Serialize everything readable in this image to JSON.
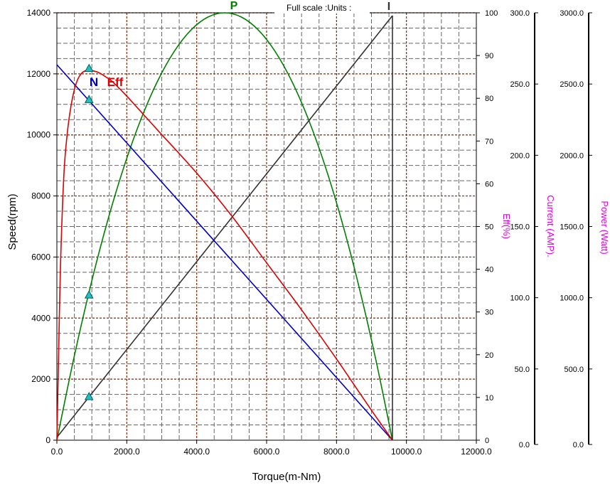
{
  "chart_data": {
    "type": "line",
    "subtitle": "Full scale :Units :",
    "xlabel": "Torque(m-Nm)",
    "ylabel": "Speed(rpm)",
    "xlim": [
      0,
      12000
    ],
    "ylim": [
      0,
      14000
    ],
    "grid": true,
    "x_ticks": [
      "0.0",
      "2000.0",
      "4000.0",
      "6000.0",
      "8000.0",
      "10000.0",
      "12000.0"
    ],
    "y_ticks": [
      "0",
      "2000",
      "4000",
      "6000",
      "8000",
      "10000",
      "12000",
      "14000"
    ],
    "right_axes": [
      {
        "label": "Eff(%)",
        "range": [
          0,
          100
        ],
        "ticks": [
          "0",
          "10",
          "20",
          "30",
          "40",
          "50",
          "60",
          "70",
          "80",
          "90",
          "100"
        ]
      },
      {
        "label": "Current (AMP).",
        "range": [
          0,
          300
        ],
        "ticks": [
          "0.0",
          "50.0",
          "100.0",
          "150.0",
          "200.0",
          "250.0",
          "300.0"
        ]
      },
      {
        "label": "Power (Watt)",
        "range": [
          0,
          3000
        ],
        "ticks": [
          "0.0",
          "500.0",
          "1000.0",
          "1500.0",
          "2000.0",
          "2500.0",
          "3000.0"
        ]
      }
    ],
    "series": [
      {
        "name": "N",
        "color": "#0000cc",
        "axis": "Speed(rpm)",
        "x": [
          0,
          9600
        ],
        "y": [
          12300,
          0
        ]
      },
      {
        "name": "I",
        "color": "#333333",
        "axis": "Current (AMP).",
        "x": [
          0,
          9600
        ],
        "y": [
          2,
          298
        ]
      },
      {
        "name": "P",
        "color": "#008000",
        "axis": "Power (Watt)",
        "x": [
          0,
          480,
          960,
          1440,
          1920,
          2400,
          2880,
          3360,
          3840,
          4320,
          4800,
          5280,
          5760,
          6240,
          6720,
          7200,
          7680,
          8160,
          8640,
          9120,
          9600
        ],
        "y": [
          0,
          570,
          1080,
          1530,
          1920,
          2250,
          2520,
          2730,
          2880,
          2970,
          3000,
          2970,
          2880,
          2730,
          2520,
          2250,
          1920,
          1530,
          1080,
          570,
          0
        ]
      },
      {
        "name": "Eff",
        "color": "#dd0000",
        "axis": "Eff(%)",
        "x": [
          0,
          50,
          100,
          200,
          300,
          400,
          500,
          600,
          700,
          800,
          900,
          1000,
          1200,
          1400,
          1600,
          2000,
          2500,
          3000,
          4000,
          5000,
          6000,
          7000,
          8000,
          8500,
          9000,
          9300,
          9600
        ],
        "y": [
          0,
          20,
          40,
          62,
          72,
          78,
          82,
          84.5,
          85.8,
          86.4,
          86.6,
          86.5,
          86,
          85,
          83.8,
          80.5,
          76,
          71.5,
          62.5,
          52.5,
          41.5,
          30.5,
          19,
          13,
          7,
          3.5,
          0
        ]
      }
    ],
    "markers": [
      {
        "x": 920,
        "y": 12170
      },
      {
        "x": 920,
        "y": 11150
      },
      {
        "x": 920,
        "y": 4750
      },
      {
        "x": 920,
        "y": 1420
      }
    ],
    "max_efficiency_torque": 920
  }
}
